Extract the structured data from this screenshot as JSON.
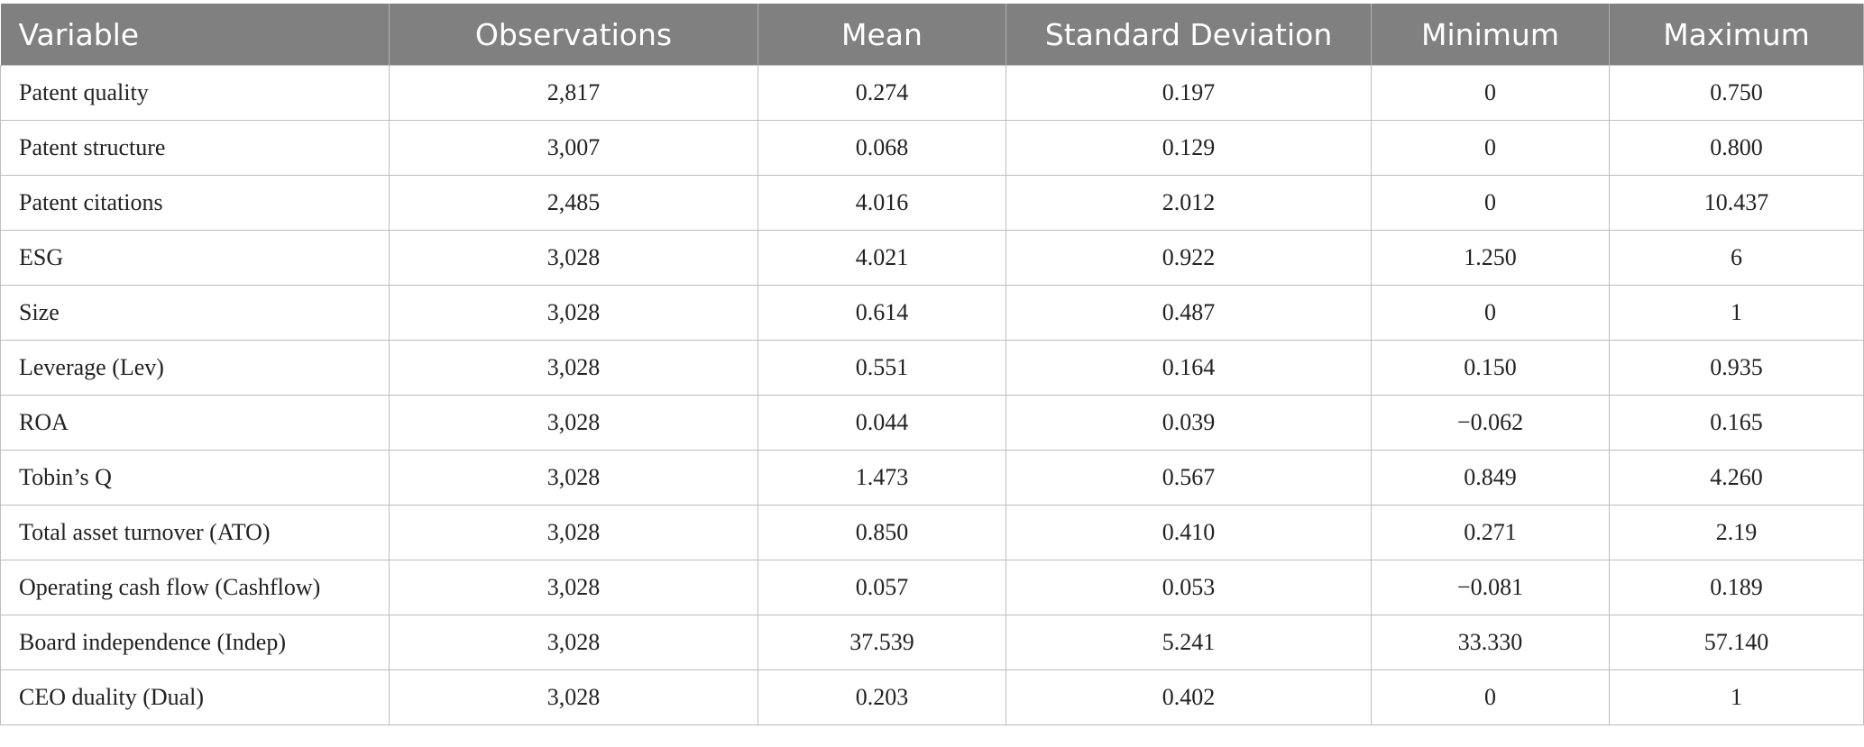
{
  "table": {
    "columns": [
      "Variable",
      "Observations",
      "Mean",
      "Standard Deviation",
      "Minimum",
      "Maximum"
    ],
    "rows": [
      [
        "Patent quality",
        "2,817",
        "0.274",
        "0.197",
        "0",
        "0.750"
      ],
      [
        "Patent structure",
        "3,007",
        "0.068",
        "0.129",
        "0",
        "0.800"
      ],
      [
        "Patent citations",
        "2,485",
        "4.016",
        "2.012",
        "0",
        "10.437"
      ],
      [
        "ESG",
        "3,028",
        "4.021",
        "0.922",
        "1.250",
        "6"
      ],
      [
        "Size",
        "3,028",
        "0.614",
        "0.487",
        "0",
        "1"
      ],
      [
        "Leverage (Lev)",
        "3,028",
        "0.551",
        "0.164",
        "0.150",
        "0.935"
      ],
      [
        "ROA",
        "3,028",
        "0.044",
        "0.039",
        "−0.062",
        "0.165"
      ],
      [
        "Tobin’s Q",
        "3,028",
        "1.473",
        "0.567",
        "0.849",
        "4.260"
      ],
      [
        "Total asset turnover (ATO)",
        "3,028",
        "0.850",
        "0.410",
        "0.271",
        "2.19"
      ],
      [
        "Operating cash flow (Cashflow)",
        "3,028",
        "0.057",
        "0.053",
        "−0.081",
        "0.189"
      ],
      [
        "Board independence (Indep)",
        "3,028",
        "37.539",
        "5.241",
        "33.330",
        "57.140"
      ],
      [
        "CEO duality (Dual)",
        "3,028",
        "0.203",
        "0.402",
        "0",
        "1"
      ]
    ]
  }
}
